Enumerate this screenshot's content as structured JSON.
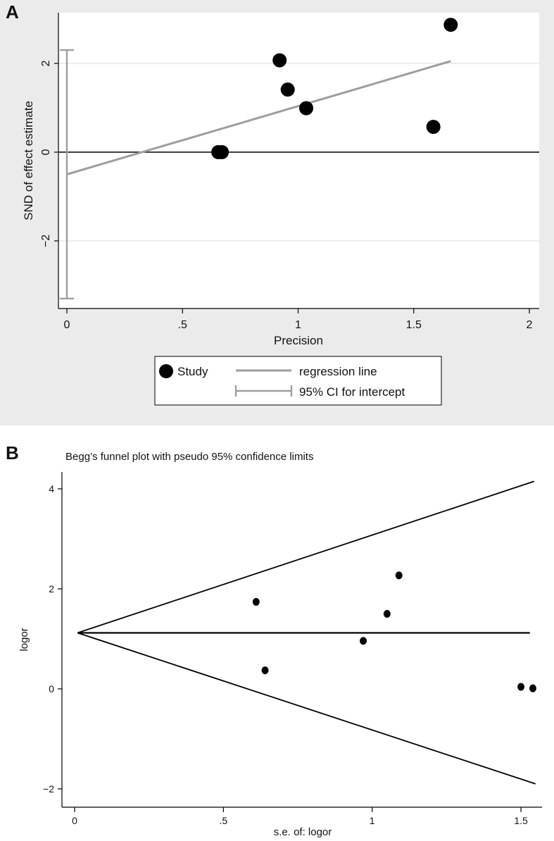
{
  "panels": {
    "a_label": "A",
    "b_label": "B"
  },
  "chart_data": [
    {
      "type": "scatter",
      "panel": "A",
      "title": "",
      "xlabel": "Precision",
      "ylabel": "SND of effect estimate",
      "xlim": [
        0,
        2
      ],
      "ylim": [
        -3.4,
        3
      ],
      "x_ticks": [
        0,
        0.5,
        1,
        1.5,
        2
      ],
      "x_tick_labels": [
        "0",
        ".5",
        "1",
        "1.5",
        "2"
      ],
      "y_ticks": [
        -2,
        0,
        2
      ],
      "y_tick_labels": [
        "−2",
        "0",
        "2"
      ],
      "grid": true,
      "series": [
        {
          "name": "Study",
          "x": [
            0.655,
            0.67,
            0.92,
            0.955,
            1.035,
            1.585,
            1.66
          ],
          "y": [
            0.0,
            0.0,
            2.07,
            1.41,
            0.99,
            0.57,
            2.87
          ]
        }
      ],
      "regression_line": {
        "name": "regression line",
        "x": [
          0,
          1.66
        ],
        "y": [
          -0.5,
          2.05
        ]
      },
      "intercept_ci": {
        "name": "95% CI for intercept",
        "x": 0,
        "low": -3.3,
        "high": 2.3
      },
      "reference_line_y": 0,
      "legend_position": "bottom",
      "colors": {
        "points": "#000000",
        "regression": "#9e9e9e",
        "ci": "#9e9e9e",
        "grid": "#dcdcdc",
        "panel_bg": "#ebebeb"
      }
    },
    {
      "type": "scatter",
      "panel": "B",
      "title": "Begg’s funnel plot with pseudo 95% confidence limits",
      "xlabel": "s.e. of: logor",
      "ylabel": "logor",
      "xlim": [
        0,
        1.55
      ],
      "ylim": [
        -2,
        4
      ],
      "x_ticks": [
        0,
        0.5,
        1,
        1.5
      ],
      "x_tick_labels": [
        "0",
        ".5",
        "1",
        "1.5"
      ],
      "y_ticks": [
        -2,
        0,
        2,
        4
      ],
      "y_tick_labels": [
        "−2",
        "0",
        "2",
        "4"
      ],
      "grid": false,
      "series": [
        {
          "name": "logor",
          "x": [
            0.61,
            0.64,
            0.97,
            1.05,
            1.09,
            1.5,
            1.54
          ],
          "y": [
            1.74,
            0.37,
            0.96,
            1.5,
            2.27,
            0.04,
            0.01
          ]
        }
      ],
      "pooled_estimate": 1.12,
      "funnel": {
        "x_end": 1.53,
        "upper_end": 4.15,
        "lower_end": -1.9
      },
      "colors": {
        "points": "#000000",
        "lines": "#000000"
      }
    }
  ]
}
